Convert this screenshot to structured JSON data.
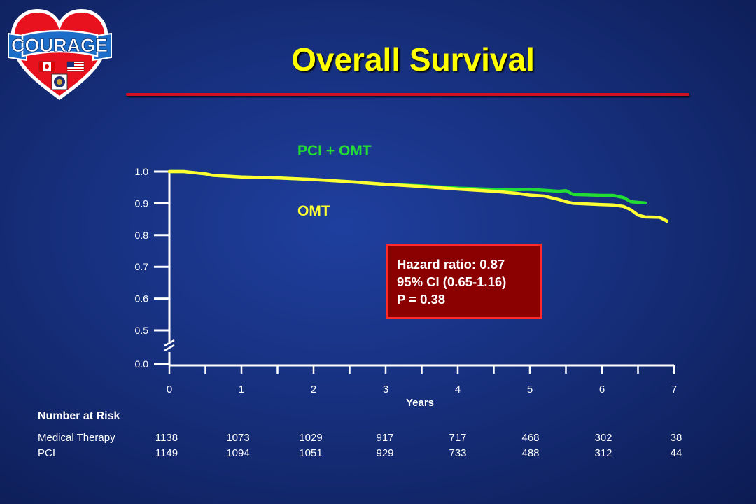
{
  "slide": {
    "title": "Overall Survival",
    "logo_text": "COURAGE"
  },
  "colors": {
    "title": "#ffff00",
    "omt_line": "#ffff33",
    "pci_line": "#22dd33",
    "box_fill": "#8b0000",
    "box_border": "#ff2a2a",
    "rule": "#d01020"
  },
  "chart_data": {
    "type": "line",
    "title": "",
    "xlabel": "Years",
    "ylabel": "",
    "x_ticks": [
      "0",
      "1",
      "2",
      "3",
      "4",
      "5",
      "6",
      "7"
    ],
    "y_ticks": [
      "0.0",
      "0.5",
      "0.6",
      "0.7",
      "0.8",
      "0.9",
      "1.0"
    ],
    "xlim": [
      0,
      7
    ],
    "ylim_display": [
      0.5,
      1.0
    ],
    "axis_break": true,
    "series": [
      {
        "name": "PCI + OMT",
        "color": "#22dd33",
        "x": [
          0,
          0.2,
          0.5,
          0.6,
          1,
          1.5,
          2,
          2.5,
          3,
          3.5,
          4,
          4.5,
          4.8,
          5,
          5.2,
          5.4,
          5.5,
          5.6,
          6,
          6.15,
          6.3,
          6.4,
          6.6
        ],
        "y": [
          1.0,
          1.0,
          0.993,
          0.988,
          0.983,
          0.98,
          0.975,
          0.968,
          0.96,
          0.955,
          0.948,
          0.944,
          0.943,
          0.944,
          0.941,
          0.938,
          0.94,
          0.928,
          0.925,
          0.925,
          0.918,
          0.905,
          0.901
        ]
      },
      {
        "name": "OMT",
        "color": "#ffff33",
        "x": [
          0,
          0.2,
          0.5,
          0.6,
          1,
          1.5,
          2,
          2.5,
          3,
          3.5,
          4,
          4.5,
          4.8,
          5,
          5.2,
          5.4,
          5.5,
          5.6,
          6,
          6.15,
          6.3,
          6.4,
          6.5,
          6.6,
          6.8,
          6.9
        ],
        "y": [
          1.0,
          1.0,
          0.993,
          0.988,
          0.983,
          0.98,
          0.975,
          0.968,
          0.96,
          0.953,
          0.945,
          0.938,
          0.932,
          0.926,
          0.923,
          0.912,
          0.905,
          0.9,
          0.896,
          0.895,
          0.89,
          0.88,
          0.863,
          0.857,
          0.856,
          0.844
        ]
      }
    ],
    "annotation": {
      "lines": [
        "Hazard ratio: 0.87",
        "95% CI (0.65-1.16)",
        "P = 0.38"
      ]
    }
  },
  "risk_table": {
    "title": "Number at Risk",
    "rows": [
      {
        "label": "Medical Therapy",
        "values": [
          "1138",
          "1073",
          "1029",
          "917",
          "717",
          "468",
          "302",
          "38"
        ]
      },
      {
        "label": "PCI",
        "values": [
          "1149",
          "1094",
          "1051",
          "929",
          "733",
          "488",
          "312",
          "44"
        ]
      }
    ]
  }
}
